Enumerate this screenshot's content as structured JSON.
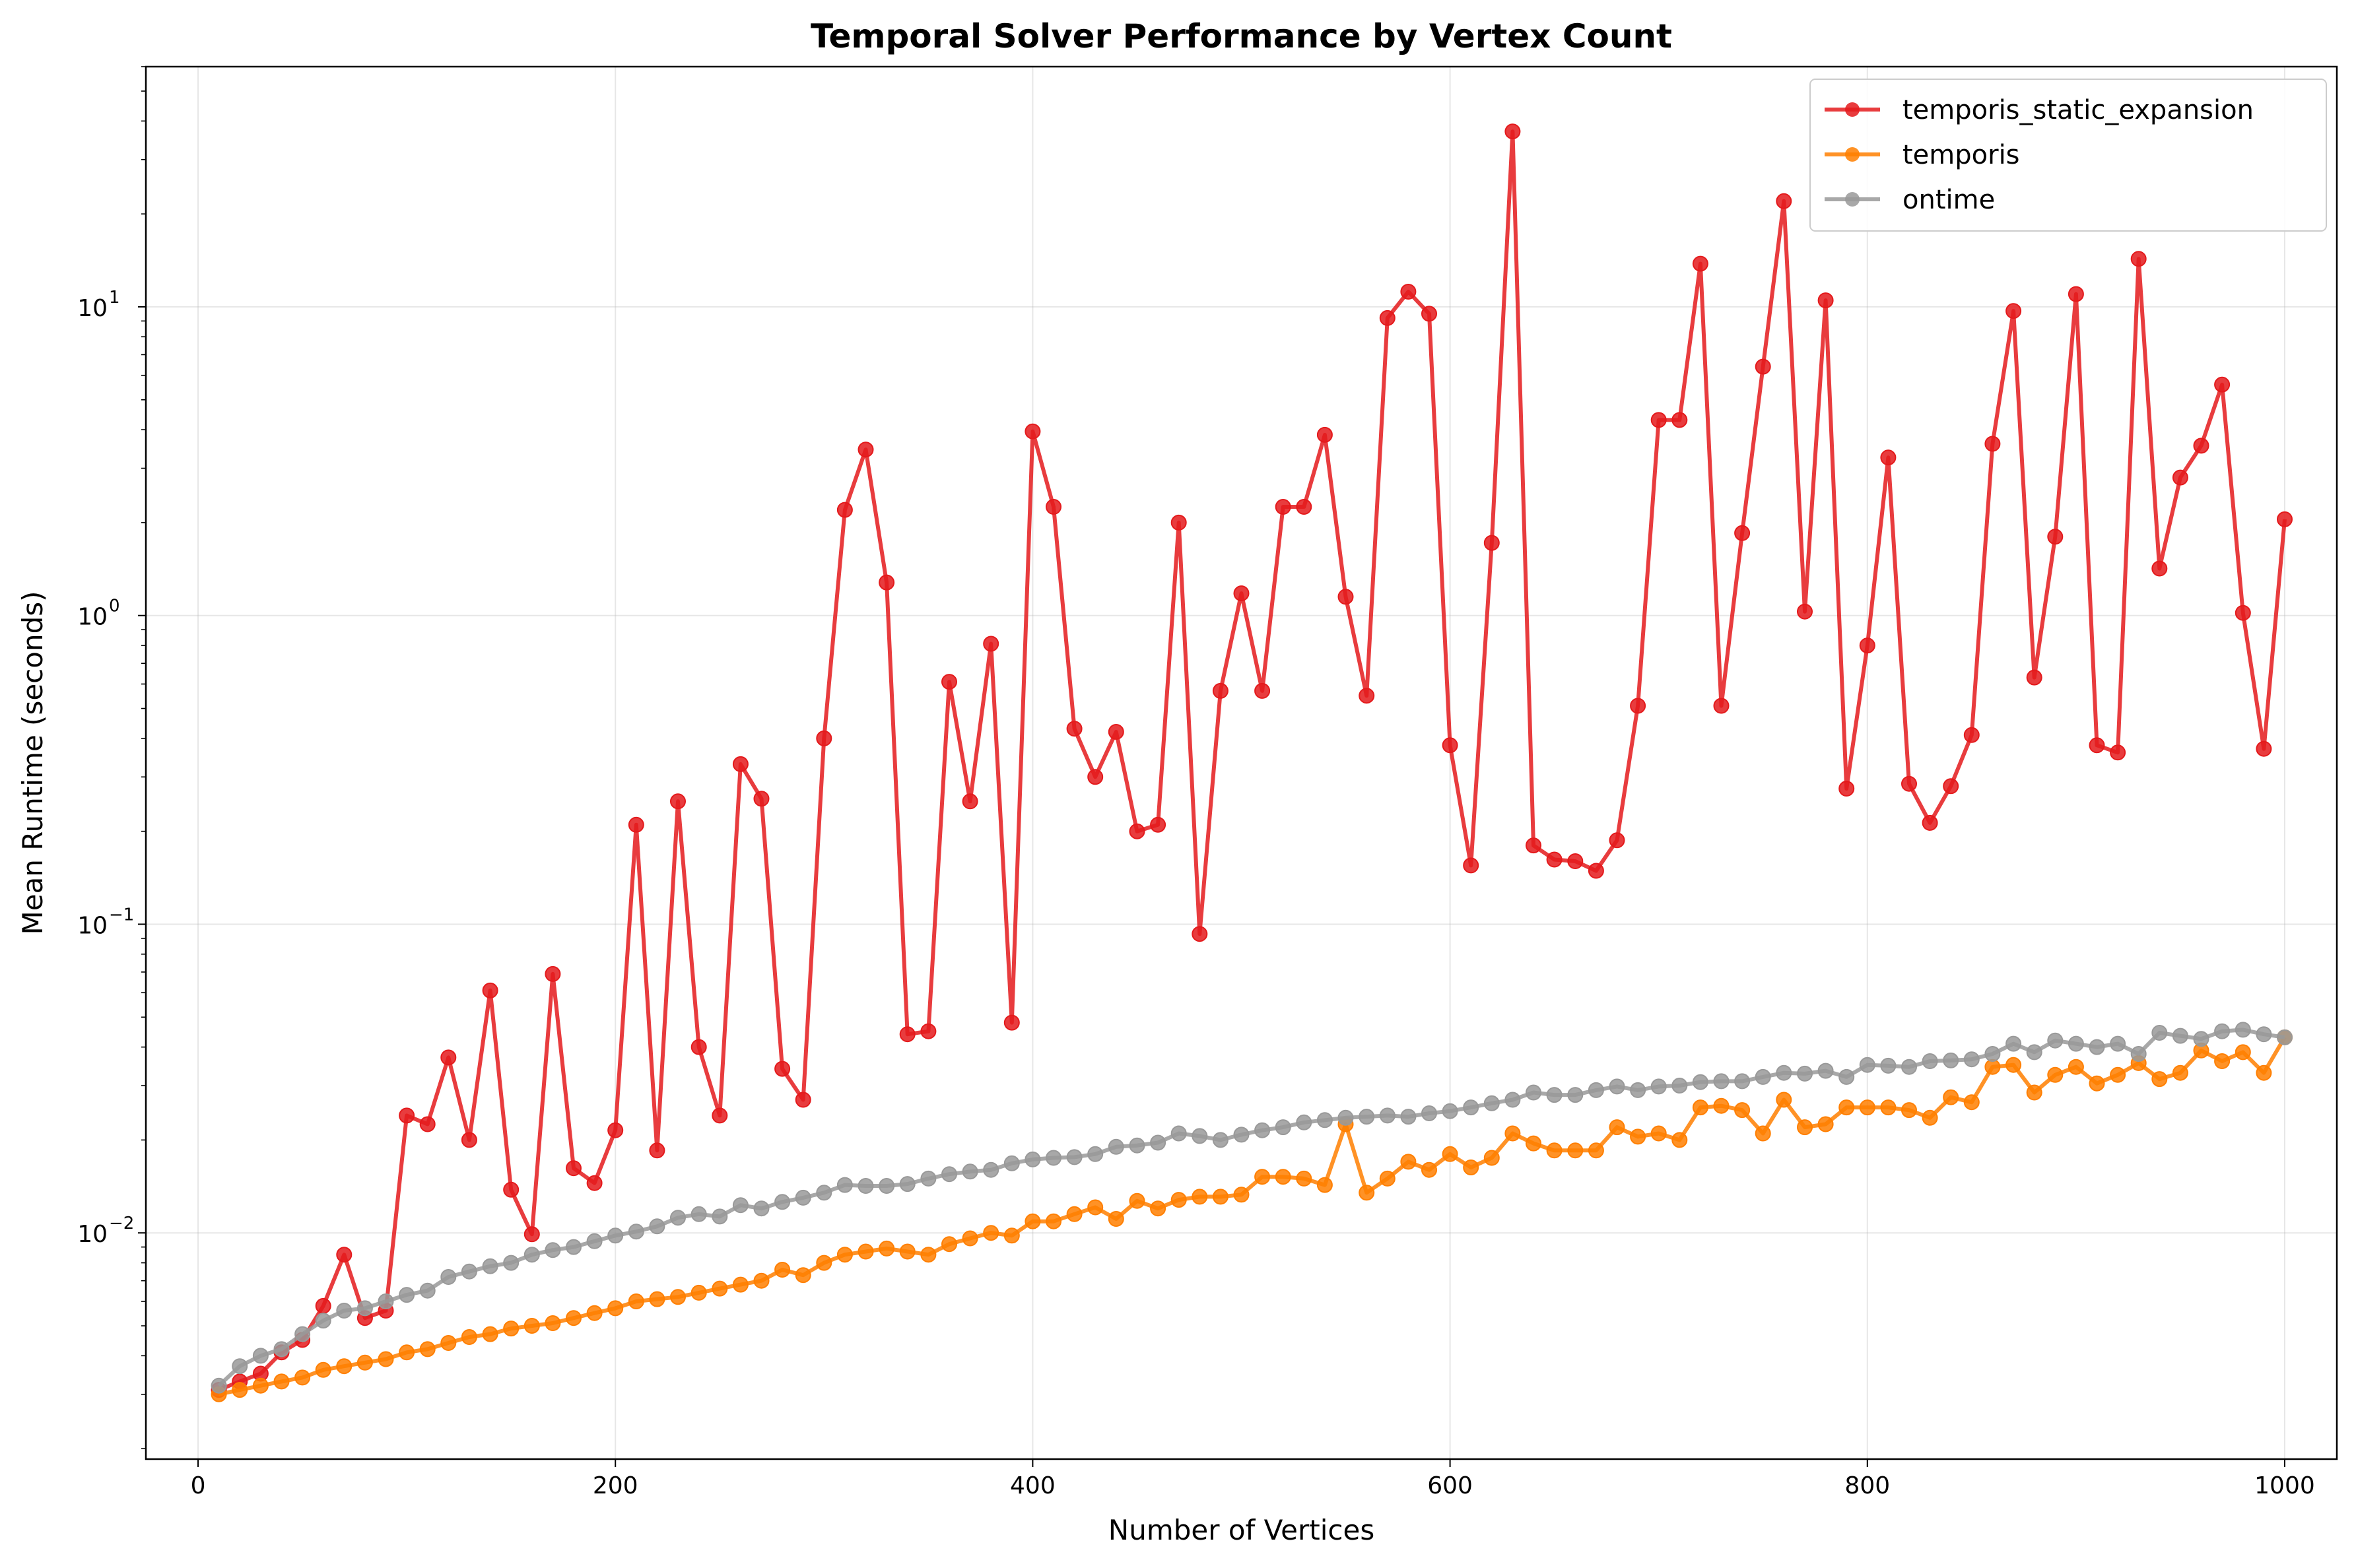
{
  "chart_data": {
    "type": "line",
    "title": "Temporal Solver Performance by Vertex Count",
    "xlabel": "Number of Vertices",
    "ylabel": "Mean Runtime (seconds)",
    "xlim": [
      -25,
      1025
    ],
    "ylim": [
      0.00185,
      60
    ],
    "yscale": "log",
    "grid": true,
    "legend_position": "top-right",
    "x_ticks": [
      0,
      200,
      400,
      600,
      800,
      1000
    ],
    "x_tick_labels": [
      "0",
      "200",
      "400",
      "600",
      "800",
      "1000"
    ],
    "y_major_ticks": [
      0.01,
      0.1,
      1,
      10
    ],
    "y_tick_bases": [
      "10",
      "10",
      "10",
      "10"
    ],
    "y_tick_exponents": [
      "−2",
      "−1",
      "0",
      "1"
    ],
    "x": [
      10,
      20,
      30,
      40,
      50,
      60,
      70,
      80,
      90,
      100,
      110,
      120,
      130,
      140,
      150,
      160,
      170,
      180,
      190,
      200,
      210,
      220,
      230,
      240,
      250,
      260,
      270,
      280,
      290,
      300,
      310,
      320,
      330,
      340,
      350,
      360,
      370,
      380,
      390,
      400,
      410,
      420,
      430,
      440,
      450,
      460,
      470,
      480,
      490,
      500,
      510,
      520,
      530,
      540,
      550,
      560,
      570,
      580,
      590,
      600,
      610,
      620,
      630,
      640,
      650,
      660,
      670,
      680,
      690,
      700,
      710,
      720,
      730,
      740,
      750,
      760,
      770,
      780,
      790,
      800,
      810,
      820,
      830,
      840,
      850,
      860,
      870,
      880,
      890,
      900,
      910,
      920,
      930,
      940,
      950,
      960,
      970,
      980,
      990,
      1000
    ],
    "series": [
      {
        "name": "temporis_static_expansion",
        "color": "#e41a1c",
        "values": [
          0.0031,
          0.0033,
          0.0035,
          0.0041,
          0.0045,
          0.0058,
          0.0085,
          0.0053,
          0.0056,
          0.024,
          0.0225,
          0.037,
          0.02,
          0.061,
          0.0138,
          0.0099,
          0.069,
          0.0162,
          0.0145,
          0.0215,
          0.21,
          0.0185,
          0.25,
          0.04,
          0.024,
          0.33,
          0.255,
          0.034,
          0.027,
          0.4,
          2.2,
          3.45,
          1.28,
          0.044,
          0.045,
          0.61,
          0.25,
          0.81,
          0.048,
          3.95,
          2.25,
          0.43,
          0.3,
          0.42,
          0.2,
          0.21,
          2.0,
          0.093,
          0.57,
          1.18,
          0.57,
          2.25,
          2.25,
          3.85,
          1.15,
          0.55,
          9.2,
          11.2,
          9.5,
          0.38,
          0.155,
          1.72,
          37.0,
          0.18,
          0.162,
          0.16,
          0.149,
          0.187,
          0.51,
          4.3,
          4.3,
          13.8,
          0.51,
          1.85,
          6.4,
          22.0,
          1.03,
          10.5,
          0.275,
          0.8,
          3.25,
          0.285,
          0.213,
          0.28,
          0.41,
          3.6,
          9.7,
          0.63,
          1.8,
          11.0,
          0.38,
          0.36,
          14.3,
          1.42,
          2.8,
          3.55,
          5.6,
          1.02,
          0.37,
          2.05
        ]
      },
      {
        "name": "temporis",
        "color": "#ff7f00",
        "values": [
          0.003,
          0.0031,
          0.0032,
          0.0033,
          0.0034,
          0.0036,
          0.0037,
          0.0038,
          0.0039,
          0.0041,
          0.0042,
          0.0044,
          0.0046,
          0.0047,
          0.0049,
          0.005,
          0.0051,
          0.0053,
          0.0055,
          0.0057,
          0.006,
          0.0061,
          0.0062,
          0.0064,
          0.0066,
          0.0068,
          0.007,
          0.0076,
          0.0073,
          0.008,
          0.0085,
          0.0087,
          0.0089,
          0.0087,
          0.0085,
          0.0092,
          0.0096,
          0.01,
          0.0098,
          0.0109,
          0.0109,
          0.0115,
          0.0121,
          0.0111,
          0.0127,
          0.012,
          0.0128,
          0.0131,
          0.0131,
          0.0133,
          0.0152,
          0.0152,
          0.015,
          0.0143,
          0.0225,
          0.0135,
          0.015,
          0.017,
          0.016,
          0.018,
          0.0163,
          0.0175,
          0.021,
          0.0195,
          0.0185,
          0.0185,
          0.0185,
          0.022,
          0.0205,
          0.021,
          0.02,
          0.0255,
          0.0258,
          0.025,
          0.021,
          0.027,
          0.022,
          0.0225,
          0.0255,
          0.0255,
          0.0255,
          0.025,
          0.0236,
          0.0275,
          0.0265,
          0.0345,
          0.035,
          0.0285,
          0.0325,
          0.0345,
          0.0305,
          0.0325,
          0.0355,
          0.0315,
          0.033,
          0.039,
          0.036,
          0.0385,
          0.033,
          0.043
        ]
      },
      {
        "name": "ontime",
        "color": "#999999",
        "values": [
          0.0032,
          0.0037,
          0.004,
          0.0042,
          0.0047,
          0.0052,
          0.0056,
          0.0057,
          0.006,
          0.0063,
          0.0065,
          0.0072,
          0.0075,
          0.0078,
          0.008,
          0.0085,
          0.0088,
          0.009,
          0.0094,
          0.0098,
          0.0101,
          0.0105,
          0.0112,
          0.0115,
          0.0113,
          0.0123,
          0.012,
          0.0126,
          0.013,
          0.0135,
          0.0143,
          0.0142,
          0.0142,
          0.0144,
          0.015,
          0.0155,
          0.0158,
          0.016,
          0.0168,
          0.0173,
          0.0175,
          0.0176,
          0.018,
          0.019,
          0.0192,
          0.0196,
          0.021,
          0.0206,
          0.02,
          0.0208,
          0.0215,
          0.022,
          0.0228,
          0.0232,
          0.0236,
          0.0238,
          0.024,
          0.0238,
          0.0244,
          0.0248,
          0.0255,
          0.0263,
          0.027,
          0.0285,
          0.028,
          0.028,
          0.029,
          0.0298,
          0.029,
          0.0298,
          0.03,
          0.0308,
          0.031,
          0.031,
          0.032,
          0.033,
          0.0328,
          0.0335,
          0.032,
          0.035,
          0.0348,
          0.0345,
          0.036,
          0.0362,
          0.0365,
          0.038,
          0.041,
          0.0385,
          0.042,
          0.041,
          0.04,
          0.041,
          0.038,
          0.0445,
          0.0435,
          0.0425,
          0.045,
          0.0455,
          0.044,
          0.043
        ]
      }
    ]
  }
}
